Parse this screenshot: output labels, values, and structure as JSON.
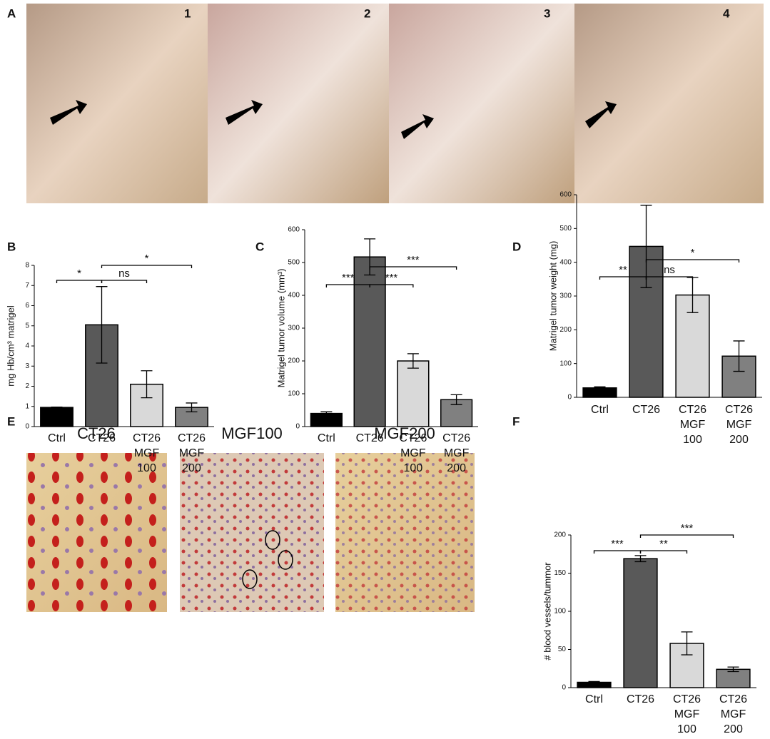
{
  "figure": {
    "panel_labels": [
      "A",
      "B",
      "C",
      "D",
      "E",
      "F"
    ],
    "photo_numbers": [
      "1",
      "2",
      "3",
      "4"
    ],
    "histology_titles": [
      "CT26",
      "MGF100",
      "MGF200"
    ]
  },
  "chart_data": [
    {
      "type": "bar",
      "ylabel": "mg Hb/cm³ matrigel",
      "categories": [
        [
          "Ctrl"
        ],
        [
          "CT26"
        ],
        [
          "CT26",
          "MGF",
          "100"
        ],
        [
          "CT26",
          "MGF",
          "200"
        ]
      ],
      "values": [
        0.95,
        5.05,
        2.1,
        0.95
      ],
      "errors": [
        0.02,
        1.9,
        0.67,
        0.22
      ],
      "colors": [
        "#000000",
        "#595959",
        "#d9d9d9",
        "#808080"
      ],
      "ylim": [
        0,
        8
      ],
      "yticks": [
        0,
        1,
        2,
        3,
        4,
        5,
        6,
        7,
        8
      ],
      "comparisons": [
        {
          "from": 0,
          "to": 1,
          "label": "*"
        },
        {
          "from": 1,
          "to": 2,
          "label": "ns"
        },
        {
          "from": 1,
          "to": 3,
          "label": "*"
        }
      ]
    },
    {
      "type": "bar",
      "ylabel": "Matrigel tumor volume (mm³)",
      "categories": [
        [
          "Ctrl"
        ],
        [
          "CT26"
        ],
        [
          "CT26",
          "MGF",
          "100"
        ],
        [
          "CT26",
          "MGF",
          "200"
        ]
      ],
      "values": [
        40,
        517,
        200,
        82
      ],
      "errors": [
        5,
        55,
        22,
        15
      ],
      "colors": [
        "#000000",
        "#595959",
        "#d9d9d9",
        "#808080"
      ],
      "ylim": [
        0,
        600
      ],
      "yticks": [
        0,
        100,
        200,
        300,
        400,
        500,
        600
      ],
      "comparisons": [
        {
          "from": 0,
          "to": 1,
          "label": "***"
        },
        {
          "from": 1,
          "to": 2,
          "label": "***"
        },
        {
          "from": 1,
          "to": 3,
          "label": "***"
        }
      ]
    },
    {
      "type": "bar",
      "ylabel": "Matrigel tumor weight (mg)",
      "categories": [
        [
          "Ctrl"
        ],
        [
          "CT26"
        ],
        [
          "CT26",
          "MGF",
          "100"
        ],
        [
          "CT26",
          "MGF",
          "200"
        ]
      ],
      "values": [
        28,
        447,
        303,
        122
      ],
      "errors": [
        3,
        122,
        52,
        45
      ],
      "colors": [
        "#000000",
        "#595959",
        "#d9d9d9",
        "#808080"
      ],
      "ylim": [
        0,
        600
      ],
      "yticks": [
        0,
        100,
        200,
        300,
        400,
        500,
        600
      ],
      "comparisons": [
        {
          "from": 0,
          "to": 1,
          "label": "**"
        },
        {
          "from": 1,
          "to": 2,
          "label": "ns"
        },
        {
          "from": 1,
          "to": 3,
          "label": "*"
        }
      ]
    },
    {
      "type": "bar",
      "ylabel": "# blood vessels/tummor",
      "categories": [
        [
          "Ctrl"
        ],
        [
          "CT26"
        ],
        [
          "CT26",
          "MGF",
          "100"
        ],
        [
          "CT26",
          "MGF",
          "200"
        ]
      ],
      "values": [
        7,
        169,
        58,
        24
      ],
      "errors": [
        1,
        4,
        15,
        3
      ],
      "colors": [
        "#000000",
        "#595959",
        "#d9d9d9",
        "#808080"
      ],
      "ylim": [
        0,
        200
      ],
      "yticks": [
        0,
        50,
        100,
        150,
        200
      ],
      "comparisons": [
        {
          "from": 0,
          "to": 1,
          "label": "***"
        },
        {
          "from": 1,
          "to": 2,
          "label": "**"
        },
        {
          "from": 1,
          "to": 3,
          "label": "***"
        }
      ]
    }
  ]
}
